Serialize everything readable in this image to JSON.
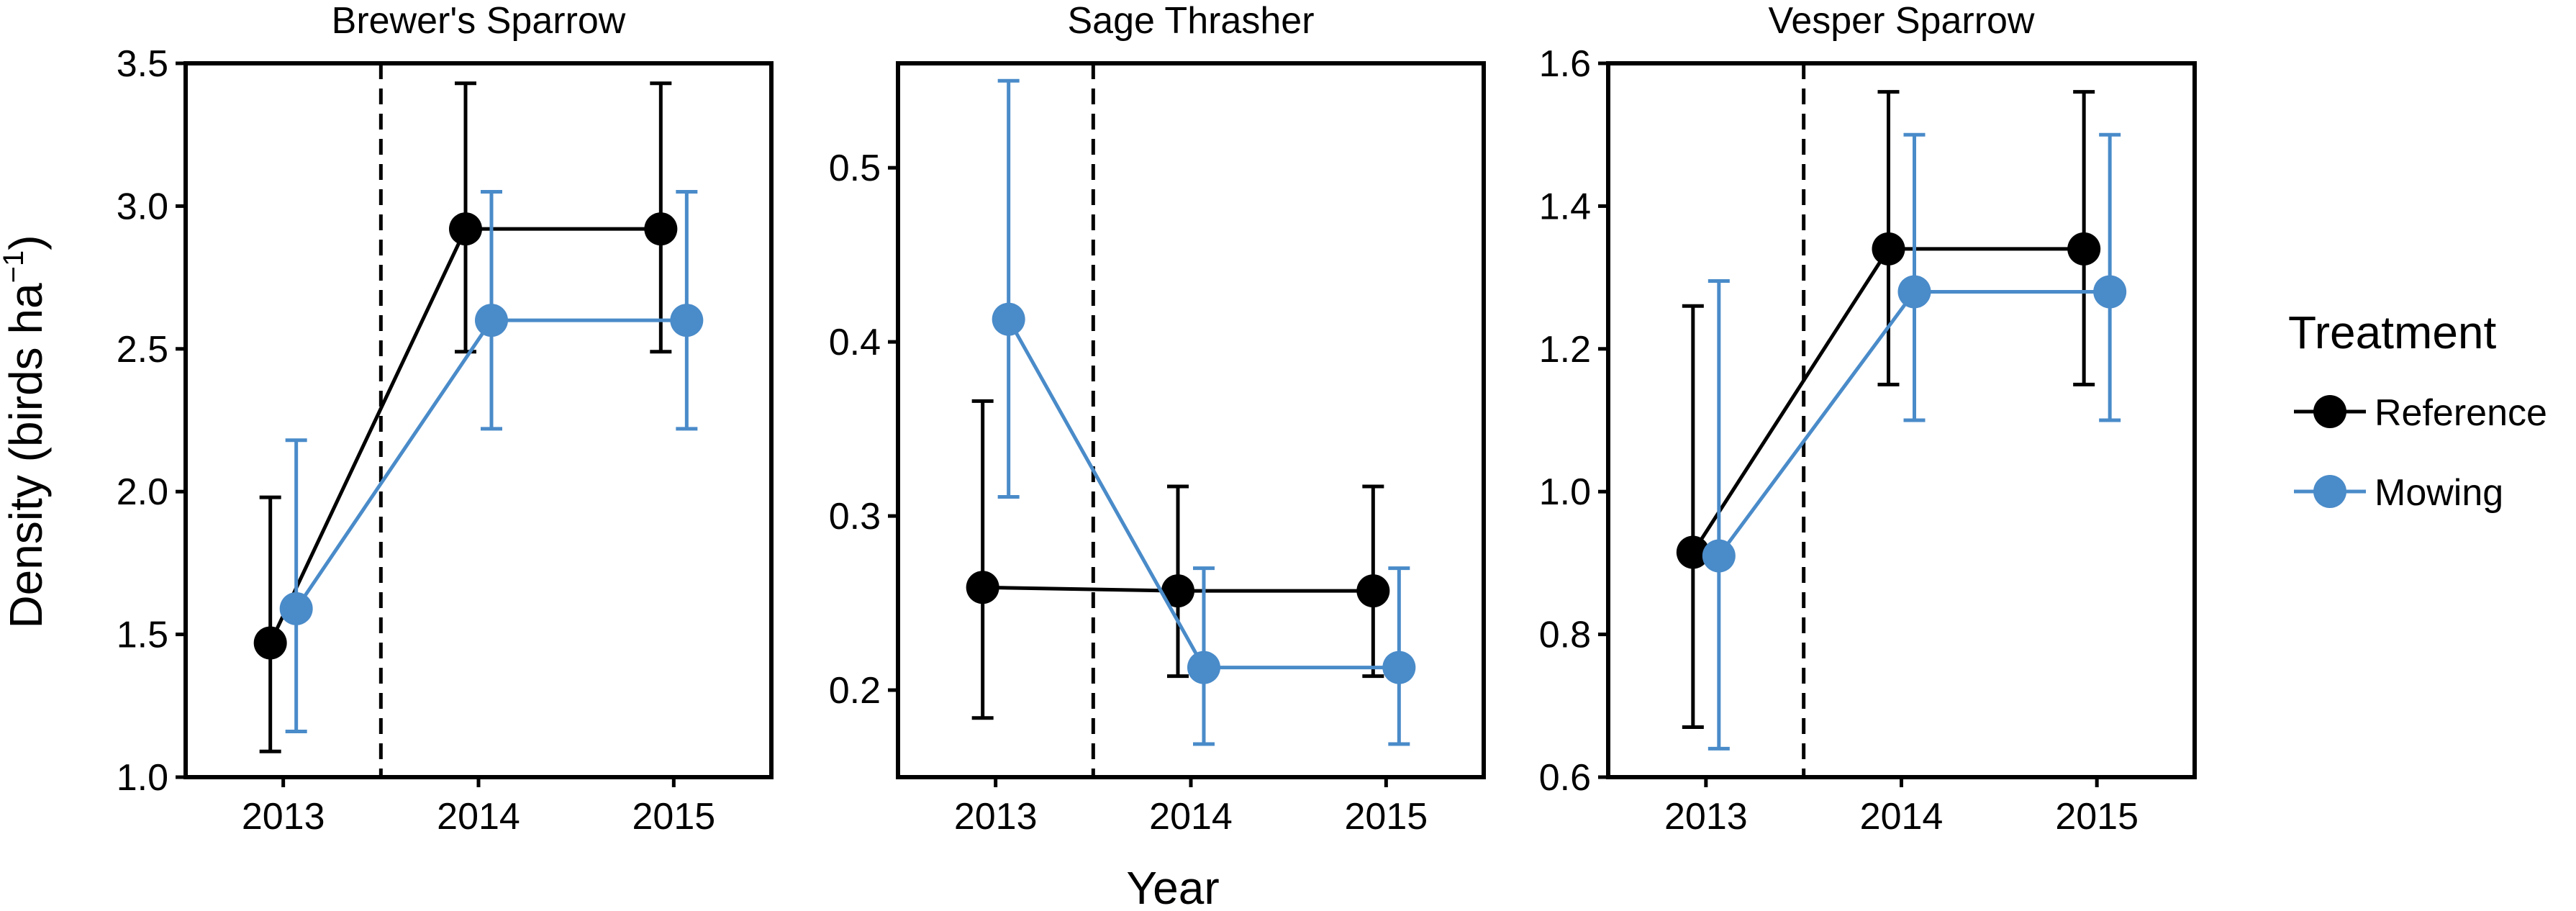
{
  "chart_data": {
    "type": "line",
    "xlabel": "Year",
    "ylabel": "Density (birds ha",
    "ylabel_superscript": "−1",
    "ylabel_suffix": ")",
    "x": [
      "2013",
      "2014",
      "2015"
    ],
    "treatment_line_between": [
      "2013",
      "2014"
    ],
    "legend": {
      "title": "Treatment",
      "position": "right",
      "entries": [
        {
          "label": "Reference",
          "color": "#000000"
        },
        {
          "label": "Mowing",
          "color": "#4a8bc9"
        }
      ]
    },
    "grid": false,
    "panels": [
      {
        "title": "Brewer's Sparrow",
        "ylim": [
          1.0,
          3.5
        ],
        "yticks": [
          "1.0",
          "1.5",
          "2.0",
          "2.5",
          "3.0",
          "3.5"
        ],
        "series": [
          {
            "name": "Reference",
            "color": "#000000",
            "values": [
              1.47,
              2.92,
              2.92
            ],
            "lower": [
              1.09,
              2.49,
              2.49
            ],
            "upper": [
              1.98,
              3.43,
              3.43
            ]
          },
          {
            "name": "Mowing",
            "color": "#4a8bc9",
            "values": [
              1.59,
              2.6,
              2.6
            ],
            "lower": [
              1.16,
              2.22,
              2.22
            ],
            "upper": [
              2.18,
              3.05,
              3.05
            ]
          }
        ]
      },
      {
        "title": "Sage Thrasher",
        "ylim": [
          0.15,
          0.56
        ],
        "yticks": [
          "0.2",
          "0.3",
          "0.4",
          "0.5"
        ],
        "series": [
          {
            "name": "Reference",
            "color": "#000000",
            "values": [
              0.259,
              0.257,
              0.257
            ],
            "lower": [
              0.184,
              0.208,
              0.208
            ],
            "upper": [
              0.366,
              0.317,
              0.317
            ]
          },
          {
            "name": "Mowing",
            "color": "#4a8bc9",
            "values": [
              0.413,
              0.213,
              0.213
            ],
            "lower": [
              0.311,
              0.169,
              0.169
            ],
            "upper": [
              0.55,
              0.27,
              0.27
            ]
          }
        ]
      },
      {
        "title": "Vesper Sparrow",
        "ylim": [
          0.6,
          1.6
        ],
        "yticks": [
          "0.6",
          "0.8",
          "1.0",
          "1.2",
          "1.4",
          "1.6"
        ],
        "series": [
          {
            "name": "Reference",
            "color": "#000000",
            "values": [
              0.915,
              1.34,
              1.34
            ],
            "lower": [
              0.67,
              1.15,
              1.15
            ],
            "upper": [
              1.26,
              1.56,
              1.56
            ]
          },
          {
            "name": "Mowing",
            "color": "#4a8bc9",
            "values": [
              0.91,
              1.28,
              1.28
            ],
            "lower": [
              0.64,
              1.1,
              1.1
            ],
            "upper": [
              1.295,
              1.5,
              1.5
            ]
          }
        ]
      }
    ]
  }
}
